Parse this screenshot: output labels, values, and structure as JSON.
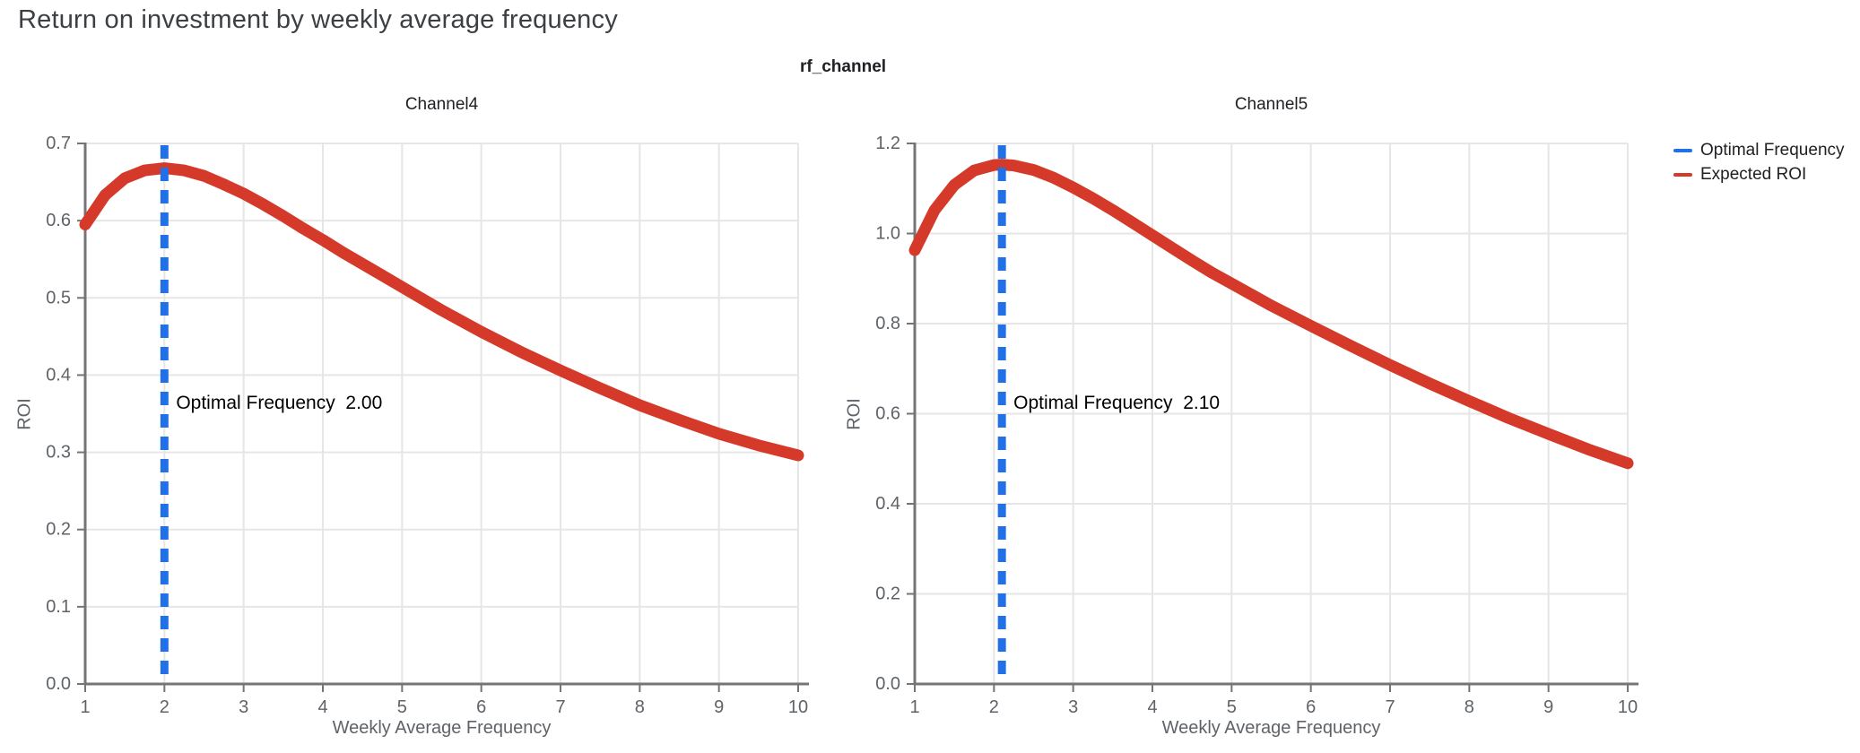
{
  "title": "Return on investment by weekly average frequency",
  "legend": {
    "items": [
      {
        "label": "Optimal Frequency",
        "color": "#2170e8",
        "swatch": "line"
      },
      {
        "label": "Expected ROI",
        "color": "#d5392a",
        "swatch": "line"
      }
    ]
  },
  "chart_data": {
    "type": "line",
    "facet_title": "rf_channel",
    "grid": true,
    "legend_position": "top-right",
    "colors": {
      "roi_line": "#d5392a",
      "optimal_line": "#2170e8",
      "axis": "#757575",
      "grid": "#e6e6e6"
    },
    "plots": [
      {
        "title": "Channel4",
        "xlabel": "Weekly Average Frequency",
        "ylabel": "ROI",
        "xlim": [
          1,
          10
        ],
        "ylim": [
          0,
          0.7
        ],
        "xticks": [
          1,
          2,
          3,
          4,
          5,
          6,
          7,
          8,
          9,
          10
        ],
        "yticks": [
          0.0,
          0.1,
          0.2,
          0.3,
          0.4,
          0.5,
          0.6,
          0.7
        ],
        "optimal_frequency": 2.0,
        "annotation": "Optimal Frequency  2.00",
        "series": {
          "name": "Expected ROI",
          "x": [
            1,
            1.25,
            1.5,
            1.75,
            2,
            2.25,
            2.5,
            2.75,
            3,
            3.25,
            3.5,
            3.75,
            4,
            4.25,
            4.5,
            4.75,
            5,
            5.5,
            6,
            6.5,
            7,
            7.5,
            8,
            8.5,
            9,
            9.5,
            10
          ],
          "y": [
            0.595,
            0.633,
            0.655,
            0.665,
            0.668,
            0.665,
            0.658,
            0.647,
            0.635,
            0.621,
            0.606,
            0.59,
            0.575,
            0.559,
            0.544,
            0.529,
            0.514,
            0.484,
            0.456,
            0.43,
            0.406,
            0.383,
            0.361,
            0.342,
            0.324,
            0.309,
            0.296
          ]
        }
      },
      {
        "title": "Channel5",
        "xlabel": "Weekly Average Frequency",
        "ylabel": "ROI",
        "xlim": [
          1,
          10
        ],
        "ylim": [
          0,
          1.2
        ],
        "xticks": [
          1,
          2,
          3,
          4,
          5,
          6,
          7,
          8,
          9,
          10
        ],
        "yticks": [
          0.0,
          0.2,
          0.4,
          0.6,
          0.8,
          1.0,
          1.2
        ],
        "optimal_frequency": 2.1,
        "annotation": "Optimal Frequency  2.10",
        "series": {
          "name": "Expected ROI",
          "x": [
            1,
            1.25,
            1.5,
            1.75,
            2,
            2.1,
            2.25,
            2.5,
            2.75,
            3,
            3.25,
            3.5,
            3.75,
            4,
            4.25,
            4.5,
            4.75,
            5,
            5.5,
            6,
            6.5,
            7,
            7.5,
            8,
            8.5,
            9,
            9.5,
            10
          ],
          "y": [
            0.963,
            1.052,
            1.108,
            1.14,
            1.152,
            1.153,
            1.151,
            1.141,
            1.124,
            1.102,
            1.078,
            1.052,
            1.024,
            0.996,
            0.968,
            0.94,
            0.913,
            0.889,
            0.84,
            0.795,
            0.751,
            0.708,
            0.667,
            0.628,
            0.59,
            0.555,
            0.521,
            0.49
          ]
        }
      }
    ]
  }
}
